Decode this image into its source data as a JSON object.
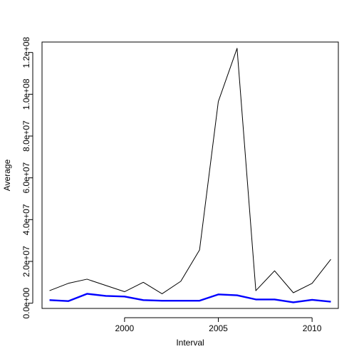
{
  "chart_data": {
    "type": "line",
    "title": "",
    "xlabel": "Interval",
    "ylabel": "Average",
    "xlim": [
      1995.6,
      2011.4
    ],
    "ylim": [
      -2500000,
      125000000
    ],
    "x_ticks": [
      2000,
      2005,
      2010
    ],
    "x_tick_labels": [
      "2000",
      "2005",
      "2010"
    ],
    "y_ticks": [
      0,
      20000000,
      40000000,
      60000000,
      80000000,
      100000000,
      120000000
    ],
    "y_tick_labels": [
      "0.0e+00",
      "2.0e+07",
      "4.0e+07",
      "6.0e+07",
      "8.0e+07",
      "1.0e+08",
      "1.2e+08"
    ],
    "grid": false,
    "legend": "none",
    "x": [
      1996,
      1997,
      1998,
      1999,
      2000,
      2001,
      2002,
      2003,
      2004,
      2005,
      2006,
      2007,
      2008,
      2009,
      2010,
      2011
    ],
    "series": [
      {
        "color": "#000000",
        "line_width": "thin",
        "values": [
          6000000,
          9500000,
          11500000,
          8500000,
          5500000,
          10000000,
          4500000,
          10500000,
          25500000,
          96500000,
          122000000,
          6000000,
          15500000,
          5000000,
          9500000,
          21000000
        ]
      },
      {
        "color": "#0000ff",
        "line_width": "thick",
        "values": [
          1500000,
          1000000,
          4500000,
          3500000,
          3200000,
          1500000,
          1200000,
          1200000,
          1200000,
          4200000,
          3800000,
          1800000,
          1800000,
          400000,
          1600000,
          700000
        ]
      }
    ]
  }
}
